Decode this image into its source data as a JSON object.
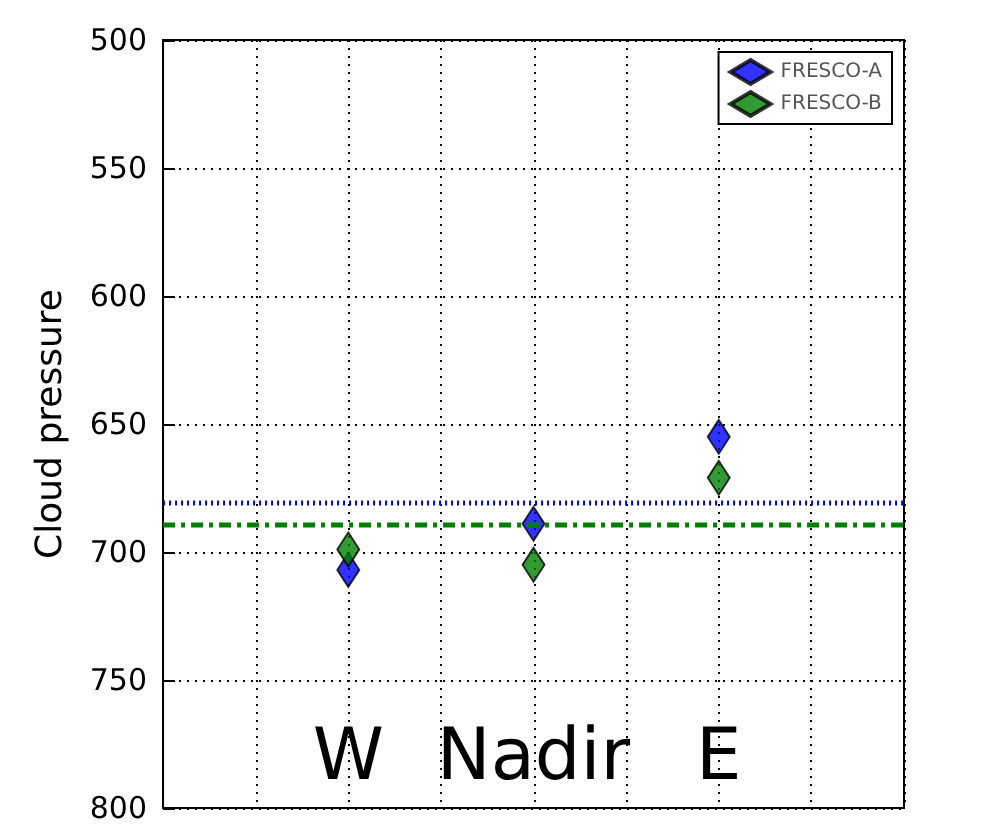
{
  "chart_data": {
    "type": "scatter",
    "ylabel": "Cloud pressure",
    "categories": [
      null,
      null,
      "W",
      null,
      "Nadir",
      null,
      "E",
      null,
      null
    ],
    "series": [
      {
        "name": "FRESCO-A",
        "color": "#0000ff",
        "values": [
          null,
          null,
          707,
          null,
          689,
          null,
          655,
          null,
          null
        ]
      },
      {
        "name": "FRESCO-B",
        "color": "#008000",
        "values": [
          null,
          null,
          699,
          null,
          705,
          null,
          671,
          null,
          null
        ]
      }
    ],
    "ylim": [
      800,
      500
    ],
    "yticks": [
      500,
      550,
      600,
      650,
      700,
      750,
      800
    ],
    "ref_lines": [
      {
        "axis": "y",
        "value": 681,
        "color": "#0000ff",
        "line_style": "dotted"
      },
      {
        "axis": "y",
        "value": 689,
        "color": "#008000",
        "line_style": "dashdot"
      }
    ],
    "grid": true,
    "legend": "top right",
    "marker": "diamond"
  }
}
